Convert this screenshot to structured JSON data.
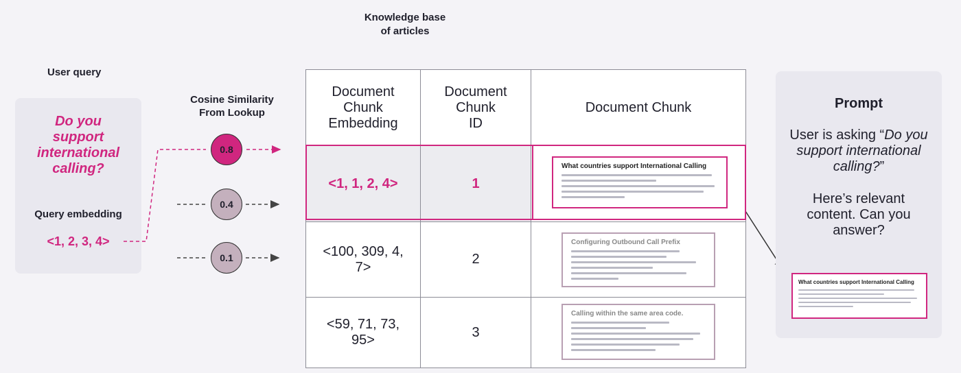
{
  "kb_title_line1": "Knowledge base",
  "kb_title_line2": "of articles",
  "user_query": {
    "heading": "User query",
    "text_lines": [
      "Do you",
      "support",
      "international",
      "calling?"
    ],
    "embedding_label": "Query embedding",
    "embedding_value": "<1, 2, 3, 4>"
  },
  "similarity": {
    "title_line1": "Cosine Similarity",
    "title_line2": "From Lookup",
    "scores": [
      "0.8",
      "0.4",
      "0.1"
    ]
  },
  "table": {
    "headers": [
      [
        "Document",
        "Chunk",
        "Embedding"
      ],
      [
        "Document",
        "Chunk",
        "ID"
      ],
      [
        "Document Chunk"
      ]
    ],
    "rows": [
      {
        "embedding": "<1, 1, 2, 4>",
        "id": "1",
        "chunk_title": "What countries support International Calling"
      },
      {
        "embedding_lines": [
          "<100, 309, 4,",
          "7>"
        ],
        "id": "2",
        "chunk_title": "Configuring Outbound Call Prefix"
      },
      {
        "embedding_lines": [
          "<59, 71, 73,",
          "95>"
        ],
        "id": "3",
        "chunk_title": "Calling within the same area code."
      }
    ]
  },
  "prompt": {
    "title": "Prompt",
    "line1": "User is asking “",
    "italic_lines": [
      "Do you",
      "support international",
      "calling?"
    ],
    "close_quote": "”",
    "follow_lines": [
      "Here’s relevant",
      "content.  Can you",
      "answer?"
    ],
    "snippet_title": "What countries support International Calling"
  },
  "colors": {
    "accent": "#d0267f",
    "muted_circle": "#c4b0bd",
    "panel": "#e9e8ef",
    "highlight_cell": "#ececf0"
  }
}
